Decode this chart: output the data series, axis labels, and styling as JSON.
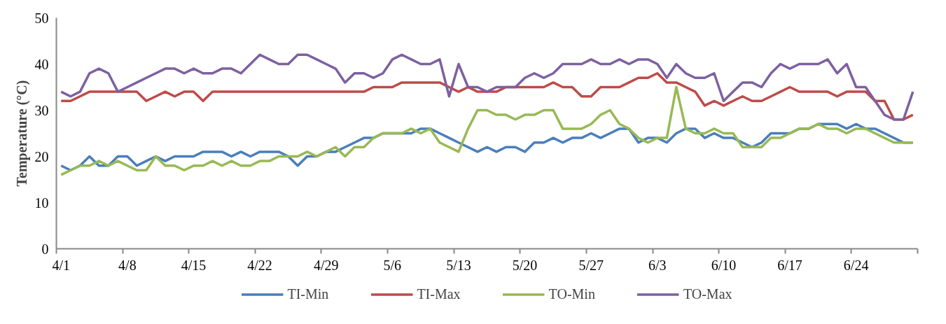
{
  "chart_data": {
    "type": "line",
    "ylabel": "Temperature (°C)",
    "categories": [
      "4/1",
      null,
      null,
      null,
      null,
      null,
      null,
      "4/8",
      null,
      null,
      null,
      null,
      null,
      null,
      "4/15",
      null,
      null,
      null,
      null,
      null,
      null,
      "4/22",
      null,
      null,
      null,
      null,
      null,
      null,
      "4/29",
      null,
      null,
      null,
      null,
      null,
      null,
      "5/6",
      null,
      null,
      null,
      null,
      null,
      null,
      "5/13",
      null,
      null,
      null,
      null,
      null,
      null,
      "5/20",
      null,
      null,
      null,
      null,
      null,
      null,
      "5/27",
      null,
      null,
      null,
      null,
      null,
      null,
      "6/3",
      null,
      null,
      null,
      null,
      null,
      null,
      "6/10",
      null,
      null,
      null,
      null,
      null,
      null,
      "6/17",
      null,
      null,
      null,
      null,
      null,
      null,
      "6/24",
      null,
      null,
      null,
      null,
      null,
      null
    ],
    "series": [
      {
        "name": "TI-Min",
        "color": "#4a7ebb",
        "values": [
          18,
          17,
          18,
          20,
          18,
          18,
          20,
          20,
          18,
          19,
          20,
          19,
          20,
          20,
          20,
          21,
          21,
          21,
          20,
          21,
          20,
          21,
          21,
          21,
          20,
          18,
          20,
          20,
          21,
          21,
          22,
          23,
          24,
          24,
          25,
          25,
          25,
          25,
          26,
          26,
          25,
          24,
          23,
          22,
          21,
          22,
          21,
          22,
          22,
          21,
          23,
          23,
          24,
          23,
          24,
          24,
          25,
          24,
          25,
          26,
          26,
          23,
          24,
          24,
          23,
          25,
          26,
          26,
          24,
          25,
          24,
          24,
          23,
          22,
          23,
          25,
          25,
          25,
          26,
          26,
          27,
          27,
          27,
          26,
          27,
          26,
          26,
          25,
          24,
          23,
          23
        ]
      },
      {
        "name": "TI-Max",
        "color": "#be4b48",
        "values": [
          32,
          32,
          33,
          34,
          34,
          34,
          34,
          34,
          34,
          32,
          33,
          34,
          33,
          34,
          34,
          32,
          34,
          34,
          34,
          34,
          34,
          34,
          34,
          34,
          34,
          34,
          34,
          34,
          34,
          34,
          34,
          34,
          34,
          35,
          35,
          35,
          36,
          36,
          36,
          36,
          36,
          35,
          34,
          35,
          34,
          34,
          34,
          35,
          35,
          35,
          35,
          35,
          36,
          35,
          35,
          33,
          33,
          35,
          35,
          35,
          36,
          37,
          37,
          38,
          36,
          36,
          35,
          34,
          31,
          32,
          31,
          32,
          33,
          32,
          32,
          33,
          34,
          35,
          34,
          34,
          34,
          34,
          33,
          34,
          34,
          34,
          32,
          32,
          28,
          28,
          29
        ]
      },
      {
        "name": "TO-Min",
        "color": "#98b954",
        "values": [
          16,
          17,
          18,
          18,
          19,
          18,
          19,
          18,
          17,
          17,
          20,
          18,
          18,
          17,
          18,
          18,
          19,
          18,
          19,
          18,
          18,
          19,
          19,
          20,
          20,
          20,
          21,
          20,
          21,
          22,
          20,
          22,
          22,
          24,
          25,
          25,
          25,
          26,
          25,
          26,
          23,
          22,
          21,
          26,
          30,
          30,
          29,
          29,
          28,
          29,
          29,
          30,
          30,
          26,
          26,
          26,
          27,
          29,
          30,
          27,
          26,
          24,
          23,
          24,
          24,
          35,
          26,
          25,
          25,
          26,
          25,
          25,
          22,
          22,
          22,
          24,
          24,
          25,
          26,
          26,
          27,
          26,
          26,
          25,
          26,
          26,
          25,
          24,
          23,
          23,
          23
        ]
      },
      {
        "name": "TO-Max",
        "color": "#7d60a0",
        "values": [
          34,
          33,
          34,
          38,
          39,
          38,
          34,
          35,
          36,
          37,
          38,
          39,
          39,
          38,
          39,
          38,
          38,
          39,
          39,
          38,
          40,
          42,
          41,
          40,
          40,
          42,
          42,
          41,
          40,
          39,
          36,
          38,
          38,
          37,
          38,
          41,
          42,
          41,
          40,
          40,
          41,
          33,
          40,
          35,
          35,
          34,
          35,
          35,
          35,
          37,
          38,
          37,
          38,
          40,
          40,
          40,
          41,
          40,
          40,
          41,
          40,
          41,
          41,
          40,
          37,
          40,
          38,
          37,
          37,
          38,
          32,
          34,
          36,
          36,
          35,
          38,
          40,
          39,
          40,
          40,
          40,
          41,
          38,
          40,
          35,
          35,
          32,
          29,
          28,
          28,
          34
        ]
      }
    ],
    "ylim": [
      0,
      50
    ],
    "yticks": [
      0,
      10,
      20,
      30,
      40,
      50
    ],
    "grid": false,
    "legend": "bottom",
    "marker": "none",
    "line_style": "solid"
  }
}
